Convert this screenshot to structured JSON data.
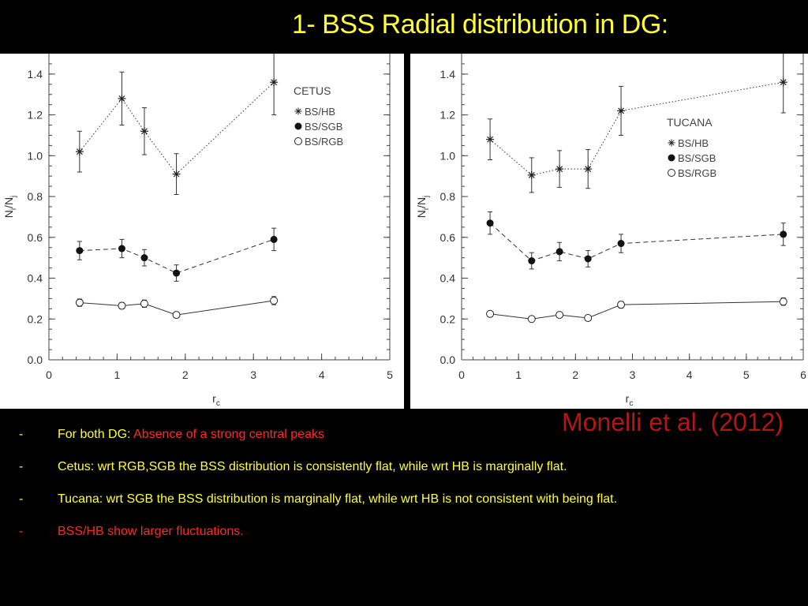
{
  "title": "1- BSS Radial distribution in DG:",
  "citation": "Monelli et al. (2012)",
  "bullets": [
    {
      "dash": "-",
      "prefix": "For both DG: ",
      "highlight": "Absence of a strong central peaks",
      "dash_color": "yellow"
    },
    {
      "dash": "-",
      "text": "Cetus: wrt RGB,SGB the BSS distribution is consistently flat, while wrt HB is marginally flat.",
      "dash_color": "yellow"
    },
    {
      "dash": "-",
      "text": "Tucana: wrt SGB the BSS distribution is marginally flat, while wrt HB is not consistent with being flat.",
      "dash_color": "yellow"
    },
    {
      "dash": "-",
      "text": "BSS/HB show larger fluctuations.",
      "dash_color": "red"
    }
  ],
  "colors": {
    "title": "#ffff33",
    "citation": "#b01818",
    "highlight": "#ff2a2a",
    "text": "#ffff33",
    "background": "#000000"
  },
  "chart_data": [
    {
      "type": "scatter",
      "title": "",
      "legend_title": "CETUS",
      "legend_position": "top-right",
      "xlabel": "r",
      "xlabel_sub": "c",
      "ylabel": "N",
      "ylabel_sub1": "i",
      "ylabel_mid": "/N",
      "ylabel_sub2": "j",
      "xlim": [
        0,
        5
      ],
      "ylim": [
        0,
        1.5
      ],
      "xticks": [
        "0",
        "1",
        "2",
        "3",
        "4",
        "5"
      ],
      "xtick_values": [
        0,
        1,
        2,
        3,
        4,
        5
      ],
      "yticks": [
        "0.0",
        "0.2",
        "0.4",
        "0.6",
        "0.8",
        "1.0",
        "1.2",
        "1.4"
      ],
      "ytick_values": [
        0,
        0.2,
        0.4,
        0.6,
        0.8,
        1.0,
        1.2,
        1.4
      ],
      "series": [
        {
          "name": "BS/HB",
          "marker": "star",
          "line": "dotted",
          "x": [
            0.45,
            1.07,
            1.4,
            1.87,
            3.3
          ],
          "y": [
            1.02,
            1.28,
            1.12,
            0.91,
            1.36
          ],
          "err": [
            0.1,
            0.13,
            0.115,
            0.1,
            0.16
          ]
        },
        {
          "name": "BS/SGB",
          "marker": "filled-circle",
          "line": "dashed",
          "x": [
            0.45,
            1.07,
            1.4,
            1.87,
            3.3
          ],
          "y": [
            0.535,
            0.545,
            0.5,
            0.425,
            0.59
          ],
          "err": [
            0.045,
            0.045,
            0.04,
            0.04,
            0.055
          ]
        },
        {
          "name": "BS/RGB",
          "marker": "open-circle",
          "line": "solid",
          "x": [
            0.45,
            1.07,
            1.4,
            1.87,
            3.3
          ],
          "y": [
            0.28,
            0.265,
            0.275,
            0.22,
            0.29
          ],
          "err": [
            0.018,
            0.016,
            0.018,
            0.014,
            0.02
          ]
        }
      ]
    },
    {
      "type": "scatter",
      "title": "",
      "legend_title": "TUCANA",
      "legend_position": "top-right",
      "xlabel": "r",
      "xlabel_sub": "c",
      "ylabel": "N",
      "ylabel_sub1": "i",
      "ylabel_mid": "/N",
      "ylabel_sub2": "j",
      "xlim": [
        0,
        6
      ],
      "ylim": [
        0,
        1.5
      ],
      "xticks": [
        "0",
        "1",
        "2",
        "3",
        "4",
        "5",
        "6"
      ],
      "xtick_values": [
        0,
        1,
        2,
        3,
        4,
        5,
        6
      ],
      "yticks": [
        "0.0",
        "0.2",
        "0.4",
        "0.6",
        "0.8",
        "1.0",
        "1.2",
        "1.4"
      ],
      "ytick_values": [
        0,
        0.2,
        0.4,
        0.6,
        0.8,
        1.0,
        1.2,
        1.4
      ],
      "series": [
        {
          "name": "BS/HB",
          "marker": "star",
          "line": "dotted",
          "x": [
            0.5,
            1.23,
            1.72,
            2.22,
            2.8,
            5.65
          ],
          "y": [
            1.08,
            0.905,
            0.935,
            0.935,
            1.22,
            1.36
          ],
          "err": [
            0.1,
            0.085,
            0.09,
            0.095,
            0.12,
            0.15
          ]
        },
        {
          "name": "BS/SGB",
          "marker": "filled-circle",
          "line": "dashed",
          "x": [
            0.5,
            1.23,
            1.72,
            2.22,
            2.8,
            5.65
          ],
          "y": [
            0.67,
            0.485,
            0.53,
            0.495,
            0.57,
            0.615
          ],
          "err": [
            0.055,
            0.04,
            0.045,
            0.04,
            0.045,
            0.055
          ]
        },
        {
          "name": "BS/RGB",
          "marker": "open-circle",
          "line": "solid",
          "x": [
            0.5,
            1.23,
            1.72,
            2.22,
            2.8,
            5.65
          ],
          "y": [
            0.225,
            0.2,
            0.22,
            0.205,
            0.27,
            0.285
          ],
          "err": [
            0.014,
            0.012,
            0.012,
            0.012,
            0.016,
            0.018
          ]
        }
      ]
    }
  ]
}
